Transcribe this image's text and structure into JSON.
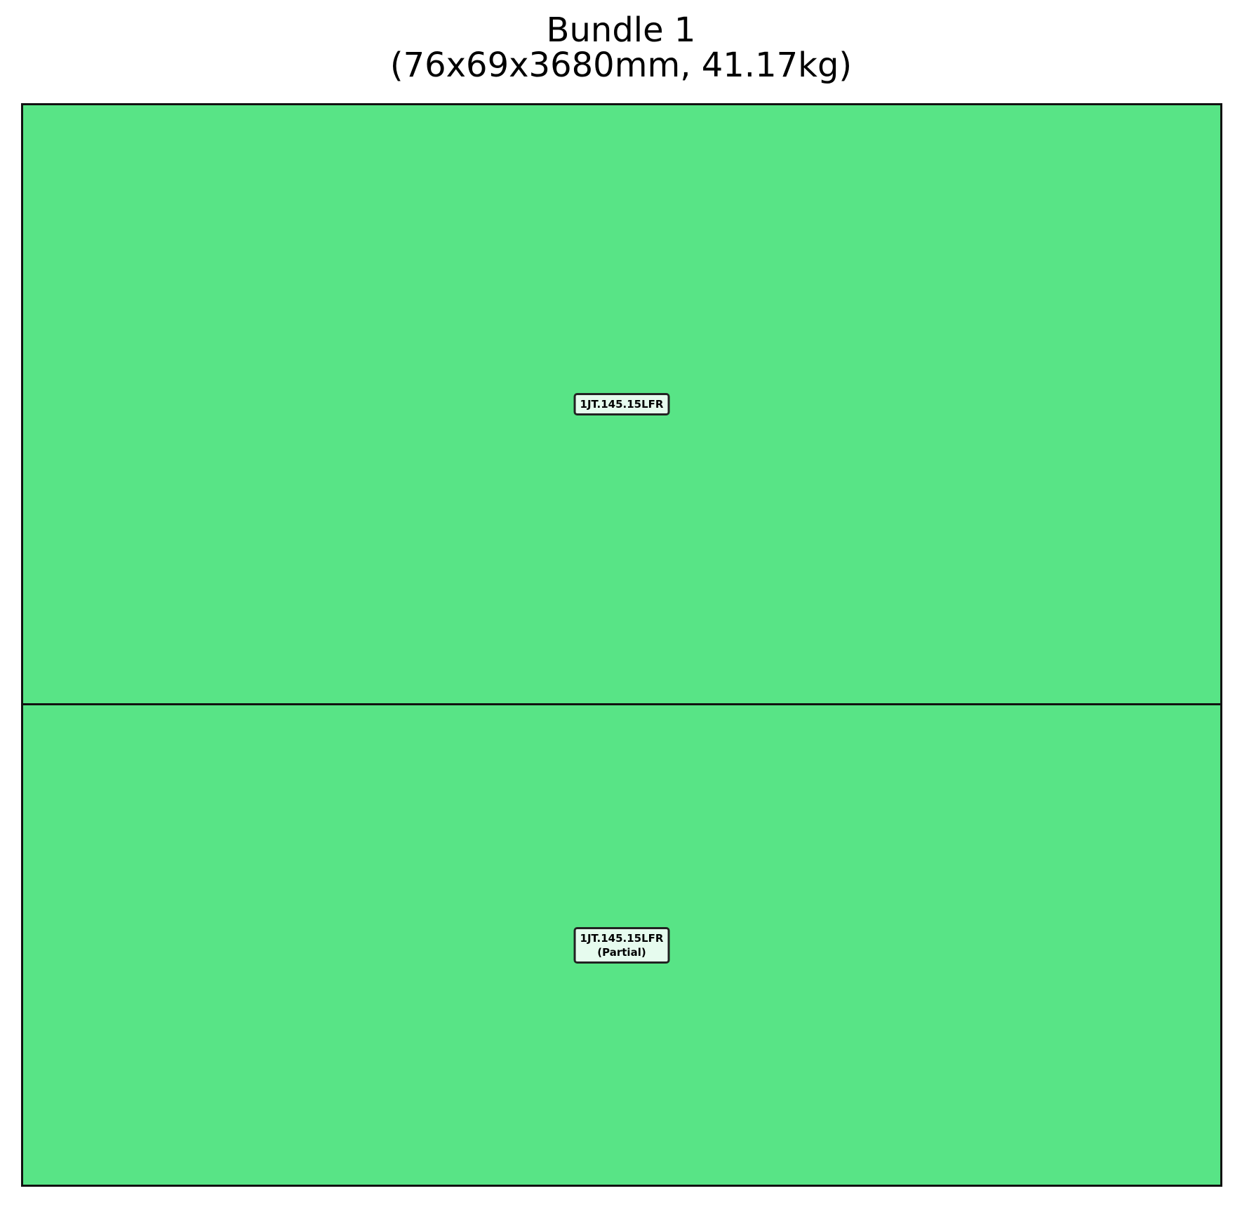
{
  "title": {
    "line1": "Bundle 1",
    "line2": "(76x69x3680mm, 41.17kg)"
  },
  "colors": {
    "piece_fill": "#58e486",
    "border": "#111111",
    "label_bg": "#e6fbee"
  },
  "pieces": [
    {
      "label": "1JT.145.15LFR",
      "note": ""
    },
    {
      "label": "1JT.145.15LFR",
      "note": "(Partial)"
    }
  ]
}
